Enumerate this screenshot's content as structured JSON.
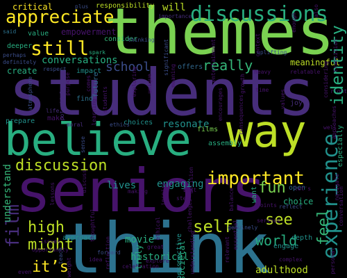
{
  "colors": {
    "background": "#000000",
    "purple": "#46136a",
    "violet": "#472d7b",
    "indigo": "#3b4d8a",
    "steel": "#2c728e",
    "blue": "#31688e",
    "teal": "#21918c",
    "seagreen": "#28ae80",
    "green": "#35b779",
    "lime": "#7ad151",
    "yellowgreen": "#bddf26",
    "yellow": "#fde725"
  },
  "words": {
    "students": "students",
    "themes": "themes",
    "seniors": "seniors",
    "think": "think",
    "believe": "believe",
    "way": "way",
    "discussions": "discussions",
    "appreciate": "appreciate",
    "still": "still",
    "important": "important",
    "discussion": "discussion",
    "experience": "experience",
    "identity": "identity",
    "film": "film",
    "self": "self",
    "high": "high",
    "might": "might",
    "its": "it’s",
    "see": "see",
    "feel": "feel",
    "fun": "fun",
    "world": "world",
    "really": "really",
    "school": "school",
    "conversations": "conversations",
    "meaningful": "meaningful",
    "empowerment": "empowerment",
    "critical": "critical",
    "will": "will",
    "engaging": "engaging",
    "lives": "lives",
    "create": "create",
    "movie": "movie",
    "understand": "understand",
    "adulthood": "adulthood",
    "choice": "choice",
    "resonate": "resonate",
    "choices": "choices",
    "films": "films",
    "assembly": "assembly",
    "truly": "truly",
    "societal": "societal",
    "historical": "historical",
    "approach": "approach",
    "depth": "depth",
    "engage": "engage",
    "open": "open",
    "want": "want",
    "value": "value",
    "deeper": "deeper",
    "impact": "impact",
    "future": "future",
    "find": "find",
    "consider": "consider",
    "responsibility": "responsibility",
    "offers": "offers",
    "joy": "joy",
    "prepare": "prepare",
    "make": "make",
    "perspective": "perspective",
    "especially": "especially",
    "spark": "spark",
    "ethics": "ethics",
    "thinking": "thinking",
    "uplifting": "uplifting",
    "relatable": "relatable",
    "importance": "importance",
    "said": "said",
    "perhaps": "perhaps",
    "definitely": "definitely",
    "respect": "respect",
    "life": "life",
    "moral": "moral",
    "genuinely": "genuinely",
    "serious": "serious",
    "reflect": "reflect",
    "points": "points",
    "step": "step",
    "best": "best",
    "lets": "let's",
    "great": "great",
    "complex": "complex",
    "idea": "idea",
    "making": "making",
    "issues": "issues",
    "opportunity": "opportunity",
    "forward": "forward",
    "celebration": "celebration",
    "explore": "explore",
    "personal": "personal",
    "right": "right",
    "time": "time",
    "essential": "essential",
    "understanding": "understanding",
    "lessons": "lessons",
    "inspire": "inspire",
    "well": "well",
    "ethical": "ethical",
    "weight": "weight",
    "even": "even",
    "sense": "sense",
    "significant": "significant",
    "potential": "potential",
    "reflection": "reflection",
    "teach": "teach",
    "thoughtful": "thoughtful",
    "encourages": "encourages",
    "atmosphere": "atmosphere",
    "heavy": "heavy",
    "comes": "comes",
    "plus": "plus",
    "discuss": "discuss",
    "enough": "enough",
    "consequences": "consequences",
    "decision": "decision",
    "challenges": "challenges",
    "unique": "unique",
    "approaches": "approaches",
    "entertainment": "entertainment",
    "students_small": "students",
    "value2": "values",
    "navigate": "navigate",
    "transition": "transition",
    "considering": "considering",
    "conversation": "conversation",
    "balance": "balance",
    "context": "context",
    "purpose": "purpose",
    "exploring": "exploring",
    "relevant": "relevant",
    "meaning": "meaning",
    "learning": "learning",
    "also": "also",
    "growth": "growth"
  }
}
